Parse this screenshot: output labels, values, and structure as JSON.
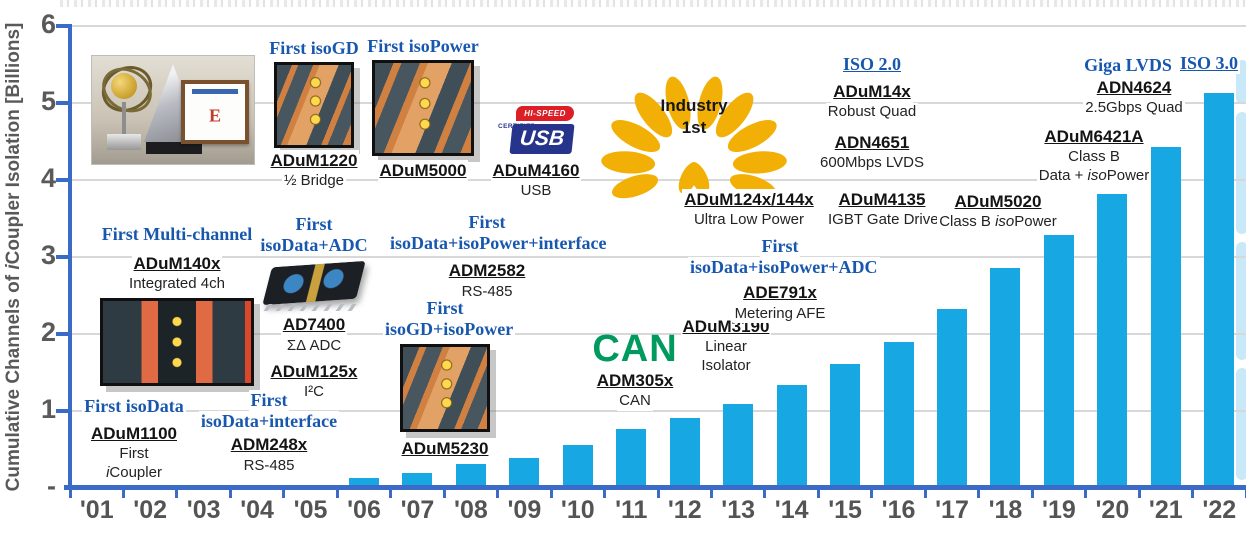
{
  "chart_data": {
    "type": "bar",
    "title": "",
    "xlabel": "",
    "ylabel": "Cumulative Channels of iCoupler Isolation [Billions]",
    "categories": [
      "'01",
      "'02",
      "'03",
      "'04",
      "'05",
      "'06",
      "'07",
      "'08",
      "'09",
      "'10",
      "'11",
      "'12",
      "'13",
      "'14",
      "'15",
      "'16",
      "'17",
      "'18",
      "'19",
      "'20",
      "'21",
      "'22"
    ],
    "values": [
      0.01,
      0.01,
      0.01,
      0.02,
      0.03,
      0.12,
      0.18,
      0.3,
      0.38,
      0.54,
      0.75,
      0.9,
      1.08,
      1.32,
      1.6,
      1.88,
      2.31,
      2.84,
      3.27,
      3.8,
      4.42,
      5.12
    ],
    "ylim": [
      0,
      6
    ],
    "ytick_labels": [
      "6",
      "5",
      "4",
      "3",
      "2",
      "1",
      "-"
    ],
    "grid": true,
    "legend": false,
    "bar_color": "#17a8e3"
  },
  "axis": {
    "y_prefix": "Cumulative Channels of ",
    "y_i": "i",
    "y_rest": "Coupler Isolation [Billions]"
  },
  "ann": {
    "isogd": {
      "title": "First isoGD",
      "part": "ADuM1220",
      "sub": "½ Bridge"
    },
    "isopower": {
      "title": "First isoPower",
      "part": "ADuM5000"
    },
    "usb": {
      "logo_hispeed": "HI-SPEED",
      "logo_usb": "USB",
      "logo_certified": "CERTIFIED",
      "part": "ADuM4160",
      "sub": "USB"
    },
    "laurel": {
      "line1": "Industry",
      "line2": "1st"
    },
    "iso2": {
      "title": "ISO 2.0",
      "part1": "ADuM14x",
      "sub1": "Robust Quad",
      "part2": "ADN4651",
      "sub2": "600Mbps LVDS"
    },
    "u124x": {
      "part": "ADuM124x/144x",
      "sub": "Ultra Low Power"
    },
    "u4135": {
      "part": "ADuM4135",
      "sub": "IGBT Gate Driver"
    },
    "u5020": {
      "part": "ADuM5020",
      "sub_pre": "Class B ",
      "sub_iso": "iso",
      "sub_post": "Power"
    },
    "giga": {
      "title": "Giga LVDS"
    },
    "iso3": {
      "title": "ISO 3.0"
    },
    "n4624": {
      "part": "ADN4624",
      "sub": "2.5Gbps Quad"
    },
    "u6421": {
      "part": "ADuM6421A",
      "sub1": "Class B",
      "sub2_pre": "Data + ",
      "sub2_iso": "iso",
      "sub2_post": "Power"
    },
    "multich": {
      "title": "First Multi-channel",
      "part": "ADuM140x",
      "sub": "Integrated 4ch"
    },
    "adc": {
      "title1": "First",
      "title2": "isoData+ADC",
      "part1": "AD7400",
      "sub1": "ΣΔ ADC",
      "part2": "ADuM125x",
      "sub2": "I²C"
    },
    "dpi": {
      "title1": "First",
      "title2": "isoData+isoPower+interface",
      "part": "ADM2582",
      "sub": "RS-485"
    },
    "gdpw": {
      "title1": "First",
      "title2": "isoGD+isoPower",
      "part": "ADuM5230"
    },
    "can": {
      "logo": "CAN",
      "part": "ADM305x",
      "sub": "CAN"
    },
    "u3190": {
      "part": "ADuM3190",
      "sub1": "Linear",
      "sub2": "Isolator"
    },
    "dpa": {
      "title1": "First",
      "title2": "isoData+isoPower+ADC",
      "part": "ADE791x",
      "sub": "Metering AFE"
    },
    "d1100": {
      "title": "First isoData",
      "part": "ADuM1100",
      "sub1": "First",
      "sub2_i": "i",
      "sub2_rest": "Coupler"
    },
    "d248x": {
      "title1": "First",
      "title2": "isoData+interface",
      "part": "ADM248x",
      "sub": "RS-485"
    }
  }
}
